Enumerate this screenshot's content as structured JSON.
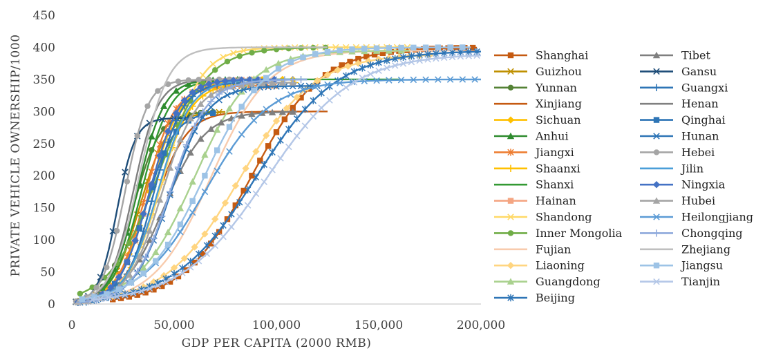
{
  "chart_data": {
    "type": "line",
    "xlabel": "GDP PER CAPITA (2000 RMB)",
    "ylabel": "PRIVATE VEHICLE OWNERSHIP/1000",
    "xlim": [
      0,
      200000
    ],
    "ylim": [
      0,
      450
    ],
    "x_ticks": [
      0,
      50000,
      100000,
      150000,
      200000
    ],
    "x_tick_labels": [
      "0",
      "50,000",
      "100,000",
      "150,000",
      "200,000"
    ],
    "y_ticks": [
      0,
      50,
      100,
      150,
      200,
      250,
      300,
      350,
      400,
      450
    ],
    "y_tick_labels": [
      "0",
      "50",
      "100",
      "150",
      "200",
      "250",
      "300",
      "350",
      "400",
      "450"
    ],
    "grid": false,
    "legend_position": "right",
    "series": [
      {
        "name": "Shanghai",
        "color": "#c55a11",
        "marker": "square",
        "saturation": 400,
        "midpoint": 88000,
        "scale": 17000,
        "x_start": 20000,
        "x_end": 198000
      },
      {
        "name": "Guizhou",
        "color": "#bf9000",
        "marker": "x",
        "saturation": 300,
        "midpoint": 33000,
        "scale": 7000,
        "x_start": 2000,
        "x_end": 75000
      },
      {
        "name": "Yunnan",
        "color": "#548235",
        "marker": "circle",
        "saturation": 300,
        "midpoint": 30000,
        "scale": 6500,
        "x_start": 3000,
        "x_end": 70000
      },
      {
        "name": "Xinjiang",
        "color": "#c55a11",
        "marker": "none",
        "saturation": 300,
        "midpoint": 40000,
        "scale": 8000,
        "x_start": 4000,
        "x_end": 125000
      },
      {
        "name": "Sichuan",
        "color": "#ffc000",
        "marker": "diamond",
        "saturation": 350,
        "midpoint": 38000,
        "scale": 8000,
        "x_start": 3000,
        "x_end": 110000
      },
      {
        "name": "Anhui",
        "color": "#2e8b2e",
        "marker": "triangle",
        "saturation": 350,
        "midpoint": 32000,
        "scale": 6500,
        "x_start": 3000,
        "x_end": 90000
      },
      {
        "name": "Jiangxi",
        "color": "#ed7d31",
        "marker": "star",
        "saturation": 340,
        "midpoint": 36000,
        "scale": 7000,
        "x_start": 3000,
        "x_end": 100000
      },
      {
        "name": "Shaanxi",
        "color": "#ffc000",
        "marker": "plus",
        "saturation": 345,
        "midpoint": 42000,
        "scale": 8000,
        "x_start": 4000,
        "x_end": 110000
      },
      {
        "name": "Shanxi",
        "color": "#339933",
        "marker": "none",
        "saturation": 350,
        "midpoint": 34000,
        "scale": 7000,
        "x_start": 3000,
        "x_end": 160000
      },
      {
        "name": "Hainan",
        "color": "#f4a582",
        "marker": "square",
        "saturation": 350,
        "midpoint": 38000,
        "scale": 7500,
        "x_start": 3000,
        "x_end": 95000
      },
      {
        "name": "Shandong",
        "color": "#ffd966",
        "marker": "x",
        "saturation": 400,
        "midpoint": 45000,
        "scale": 9000,
        "x_start": 4000,
        "x_end": 165000
      },
      {
        "name": "Inner Mongolia",
        "color": "#70ad47",
        "marker": "circle",
        "saturation": 400,
        "midpoint": 42000,
        "scale": 12000,
        "x_start": 4000,
        "x_end": 125000
      },
      {
        "name": "Fujian",
        "color": "#f8cbad",
        "marker": "none",
        "saturation": 395,
        "midpoint": 68000,
        "scale": 14000,
        "x_start": 5000,
        "x_end": 190000
      },
      {
        "name": "Liaoning",
        "color": "#ffd580",
        "marker": "diamond",
        "saturation": 390,
        "midpoint": 82000,
        "scale": 18000,
        "x_start": 5000,
        "x_end": 175000
      },
      {
        "name": "Guangdong",
        "color": "#a9d18e",
        "marker": "triangle",
        "saturation": 395,
        "midpoint": 60000,
        "scale": 14000,
        "x_start": 5000,
        "x_end": 165000
      },
      {
        "name": "Beijing",
        "color": "#2e75b6",
        "marker": "star",
        "saturation": 395,
        "midpoint": 90000,
        "scale": 20000,
        "x_start": 10000,
        "x_end": 200000
      },
      {
        "name": "Tibet",
        "color": "#7f7f7f",
        "marker": "triangle",
        "saturation": 300,
        "midpoint": 45000,
        "scale": 10000,
        "x_start": 8000,
        "x_end": 110000
      },
      {
        "name": "Gansu",
        "color": "#1f4e79",
        "marker": "x",
        "saturation": 290,
        "midpoint": 22000,
        "scale": 4500,
        "x_start": 2000,
        "x_end": 60000
      },
      {
        "name": "Guangxi",
        "color": "#2e75b6",
        "marker": "plus",
        "saturation": 345,
        "midpoint": 40000,
        "scale": 7000,
        "x_start": 3000,
        "x_end": 105000
      },
      {
        "name": "Henan",
        "color": "#808080",
        "marker": "none",
        "saturation": 350,
        "midpoint": 30000,
        "scale": 6000,
        "x_start": 3000,
        "x_end": 95000
      },
      {
        "name": "Qinghai",
        "color": "#2e75b6",
        "marker": "square",
        "saturation": 300,
        "midpoint": 36000,
        "scale": 7000,
        "x_start": 3000,
        "x_end": 70000
      },
      {
        "name": "Hunan",
        "color": "#2e75b6",
        "marker": "x",
        "saturation": 340,
        "midpoint": 48000,
        "scale": 9000,
        "x_start": 4000,
        "x_end": 120000
      },
      {
        "name": "Hebei",
        "color": "#a5a5a5",
        "marker": "circle",
        "saturation": 350,
        "midpoint": 26000,
        "scale": 5500,
        "x_start": 2000,
        "x_end": 90000
      },
      {
        "name": "Jilin",
        "color": "#4a9ed8",
        "marker": "none",
        "saturation": 350,
        "midpoint": 42000,
        "scale": 8000,
        "x_start": 3000,
        "x_end": 115000
      },
      {
        "name": "Ningxia",
        "color": "#4472c4",
        "marker": "diamond",
        "saturation": 350,
        "midpoint": 38000,
        "scale": 7500,
        "x_start": 3000,
        "x_end": 100000
      },
      {
        "name": "Hubei",
        "color": "#a5a5a5",
        "marker": "triangle",
        "saturation": 345,
        "midpoint": 44000,
        "scale": 8500,
        "x_start": 3000,
        "x_end": 110000
      },
      {
        "name": "Heilongjiang",
        "color": "#5b9bd5",
        "marker": "x",
        "saturation": 350,
        "midpoint": 65000,
        "scale": 16000,
        "x_start": 5000,
        "x_end": 200000
      },
      {
        "name": "Chongqing",
        "color": "#8faadc",
        "marker": "plus",
        "saturation": 350,
        "midpoint": 48000,
        "scale": 9000,
        "x_start": 4000,
        "x_end": 115000
      },
      {
        "name": "Zhejiang",
        "color": "#bfbfbf",
        "marker": "none",
        "saturation": 400,
        "midpoint": 33000,
        "scale": 7000,
        "x_start": 3000,
        "x_end": 125000
      },
      {
        "name": "Jiangsu",
        "color": "#9dc3e6",
        "marker": "square",
        "saturation": 400,
        "midpoint": 65000,
        "scale": 15000,
        "x_start": 5000,
        "x_end": 195000
      },
      {
        "name": "Tianjin",
        "color": "#b4c7e7",
        "marker": "x",
        "saturation": 390,
        "midpoint": 95000,
        "scale": 21000,
        "x_start": 10000,
        "x_end": 200000
      }
    ]
  }
}
